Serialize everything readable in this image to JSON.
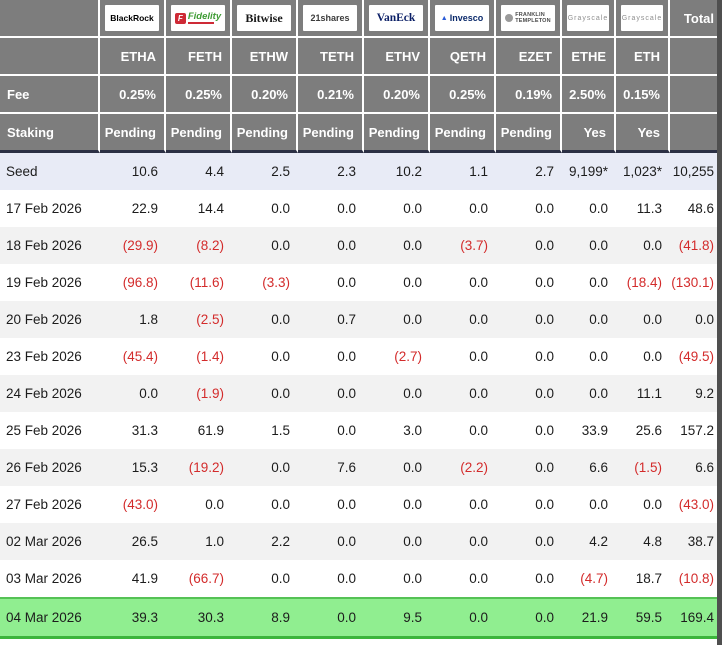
{
  "table": {
    "total_label": "Total",
    "fee_label": "Fee",
    "staking_label": "Staking",
    "columns": [
      {
        "brand": "BlackRock",
        "logo": "blackrock-logo",
        "ticker": "ETHA",
        "fee": "0.25%",
        "staking": "Pending"
      },
      {
        "brand": "Fidelity",
        "logo": "fidelity-logo",
        "ticker": "FETH",
        "fee": "0.25%",
        "staking": "Pending"
      },
      {
        "brand": "Bitwise",
        "logo": "bitwise-logo",
        "ticker": "ETHW",
        "fee": "0.20%",
        "staking": "Pending"
      },
      {
        "brand": "21shares",
        "logo": "21shares-logo",
        "ticker": "TETH",
        "fee": "0.21%",
        "staking": "Pending"
      },
      {
        "brand": "VanEck",
        "logo": "vaneck-logo",
        "ticker": "ETHV",
        "fee": "0.20%",
        "staking": "Pending"
      },
      {
        "brand": "Invesco",
        "logo": "invesco-logo",
        "ticker": "QETH",
        "fee": "0.25%",
        "staking": "Pending"
      },
      {
        "brand": "Franklin Templeton",
        "logo": "franklin-templeton-logo",
        "ticker": "EZET",
        "fee": "0.19%",
        "staking": "Pending"
      },
      {
        "brand": "Grayscale",
        "logo": "grayscale-logo",
        "ticker": "ETHE",
        "fee": "2.50%",
        "staking": "Yes"
      },
      {
        "brand": "Grayscale",
        "logo": "grayscale-logo",
        "ticker": "ETH",
        "fee": "0.15%",
        "staking": "Yes"
      }
    ],
    "rows": [
      {
        "label": "Seed",
        "style": "seed",
        "values": [
          "10.6",
          "4.4",
          "2.5",
          "2.3",
          "10.2",
          "1.1",
          "2.7",
          "9,199*",
          "1,023*"
        ],
        "total": "10,255"
      },
      {
        "label": "17 Feb 2026",
        "style": "a",
        "values": [
          "22.9",
          "14.4",
          "0.0",
          "0.0",
          "0.0",
          "0.0",
          "0.0",
          "0.0",
          "11.3"
        ],
        "total": "48.6"
      },
      {
        "label": "18 Feb 2026",
        "style": "b",
        "values": [
          "(29.9)",
          "(8.2)",
          "0.0",
          "0.0",
          "0.0",
          "(3.7)",
          "0.0",
          "0.0",
          "0.0"
        ],
        "total": "(41.8)"
      },
      {
        "label": "19 Feb 2026",
        "style": "a",
        "values": [
          "(96.8)",
          "(11.6)",
          "(3.3)",
          "0.0",
          "0.0",
          "0.0",
          "0.0",
          "0.0",
          "(18.4)"
        ],
        "total": "(130.1)"
      },
      {
        "label": "20 Feb 2026",
        "style": "b",
        "values": [
          "1.8",
          "(2.5)",
          "0.0",
          "0.7",
          "0.0",
          "0.0",
          "0.0",
          "0.0",
          "0.0"
        ],
        "total": "0.0"
      },
      {
        "label": "23 Feb 2026",
        "style": "a",
        "values": [
          "(45.4)",
          "(1.4)",
          "0.0",
          "0.0",
          "(2.7)",
          "0.0",
          "0.0",
          "0.0",
          "0.0"
        ],
        "total": "(49.5)"
      },
      {
        "label": "24 Feb 2026",
        "style": "b",
        "values": [
          "0.0",
          "(1.9)",
          "0.0",
          "0.0",
          "0.0",
          "0.0",
          "0.0",
          "0.0",
          "11.1"
        ],
        "total": "9.2"
      },
      {
        "label": "25 Feb 2026",
        "style": "a",
        "values": [
          "31.3",
          "61.9",
          "1.5",
          "0.0",
          "3.0",
          "0.0",
          "0.0",
          "33.9",
          "25.6"
        ],
        "total": "157.2"
      },
      {
        "label": "26 Feb 2026",
        "style": "b",
        "values": [
          "15.3",
          "(19.2)",
          "0.0",
          "7.6",
          "0.0",
          "(2.2)",
          "0.0",
          "6.6",
          "(1.5)"
        ],
        "total": "6.6"
      },
      {
        "label": "27 Feb 2026",
        "style": "a",
        "values": [
          "(43.0)",
          "0.0",
          "0.0",
          "0.0",
          "0.0",
          "0.0",
          "0.0",
          "0.0",
          "0.0"
        ],
        "total": "(43.0)"
      },
      {
        "label": "02 Mar 2026",
        "style": "b",
        "values": [
          "26.5",
          "1.0",
          "2.2",
          "0.0",
          "0.0",
          "0.0",
          "0.0",
          "4.2",
          "4.8"
        ],
        "total": "38.7"
      },
      {
        "label": "03 Mar 2026",
        "style": "a",
        "values": [
          "41.9",
          "(66.7)",
          "0.0",
          "0.0",
          "0.0",
          "0.0",
          "0.0",
          "(4.7)",
          "18.7"
        ],
        "total": "(10.8)"
      },
      {
        "label": "04 Mar 2026",
        "style": "hl",
        "values": [
          "39.3",
          "30.3",
          "8.9",
          "0.0",
          "9.5",
          "0.0",
          "0.0",
          "21.9",
          "59.5"
        ],
        "total": "169.4"
      }
    ]
  },
  "colors": {
    "header_bg": "#7d7d7d",
    "header_text": "#ffffff",
    "seed_row_bg": "#e8ebf6",
    "zebra_row_bg": "#f2f2f2",
    "highlight_row_bg": "#90ee90",
    "highlight_border": "#3bb53b",
    "negative_text": "#d32b2b",
    "body_text": "#1c1c1c",
    "header_divider": "#2b3044",
    "right_edge_strip": "#4f4f4f"
  }
}
